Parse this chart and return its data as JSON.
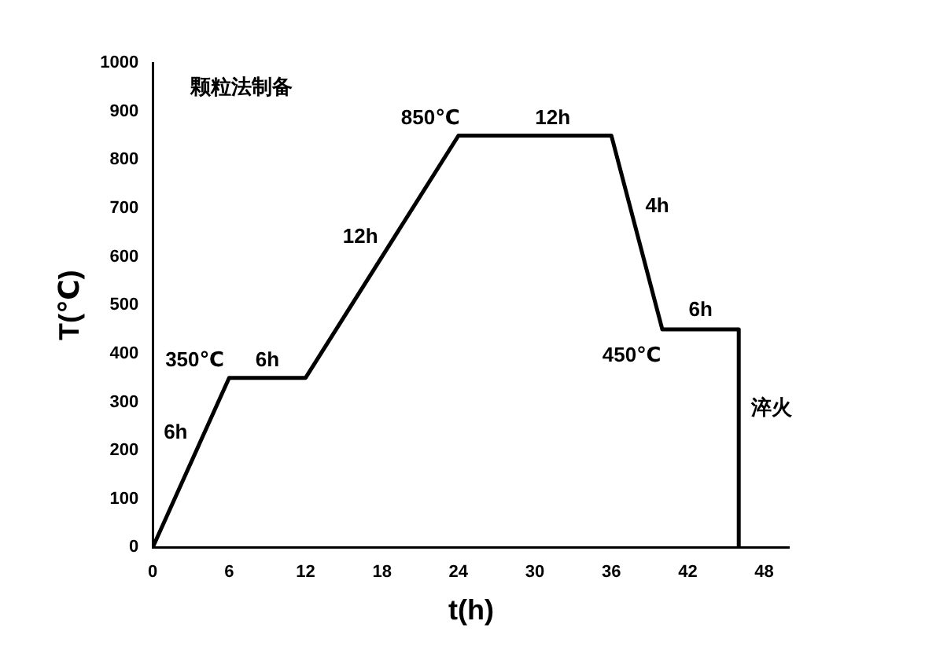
{
  "chart_data": {
    "type": "line",
    "title": "颗粒法制备",
    "xlabel": "t(h)",
    "ylabel": "T(℃)",
    "x": [
      0,
      6,
      12,
      24,
      36,
      40,
      46,
      46
    ],
    "series": [
      {
        "color": "#000000",
        "values": [
          0,
          350,
          350,
          850,
          850,
          450,
          450,
          0
        ]
      }
    ],
    "xlim": [
      0,
      50
    ],
    "xticks": [
      0,
      6,
      12,
      18,
      24,
      30,
      36,
      42,
      48
    ],
    "ylim": [
      0,
      1000
    ],
    "yticks": [
      0,
      100,
      200,
      300,
      400,
      500,
      600,
      700,
      800,
      900,
      1000
    ],
    "legend": false,
    "marker": "none",
    "line_style": "solid",
    "annotations": [
      "6h",
      "350℃",
      "6h",
      "12h",
      "850℃",
      "12h",
      "4h",
      "450℃",
      "6h",
      "淬火"
    ]
  }
}
